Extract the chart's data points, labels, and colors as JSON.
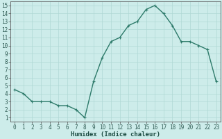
{
  "x": [
    0,
    1,
    2,
    3,
    4,
    5,
    6,
    7,
    8,
    9,
    10,
    11,
    12,
    13,
    14,
    15,
    16,
    17,
    18,
    19,
    20,
    21,
    22,
    23
  ],
  "y": [
    4.5,
    4.0,
    3.0,
    3.0,
    3.0,
    2.5,
    2.5,
    2.0,
    1.0,
    5.5,
    8.5,
    10.5,
    11.0,
    12.5,
    13.0,
    14.5,
    15.0,
    14.0,
    12.5,
    10.5,
    10.5,
    10.0,
    9.5,
    5.5
  ],
  "line_color": "#2d7a6a",
  "marker": "+",
  "marker_size": 3,
  "bg_color": "#cdecea",
  "grid_color": "#b0d8d5",
  "xlabel": "Humidex (Indice chaleur)",
  "xlim": [
    -0.5,
    23.5
  ],
  "ylim": [
    0.5,
    15.5
  ],
  "xticks": [
    0,
    1,
    2,
    3,
    4,
    5,
    6,
    7,
    8,
    9,
    10,
    11,
    12,
    13,
    14,
    15,
    16,
    17,
    18,
    19,
    20,
    21,
    22,
    23
  ],
  "yticks": [
    1,
    2,
    3,
    4,
    5,
    6,
    7,
    8,
    9,
    10,
    11,
    12,
    13,
    14,
    15
  ],
  "xlabel_fontsize": 6.5,
  "tick_fontsize": 5.5,
  "line_width": 1.0,
  "marker_linewidth": 0.8
}
